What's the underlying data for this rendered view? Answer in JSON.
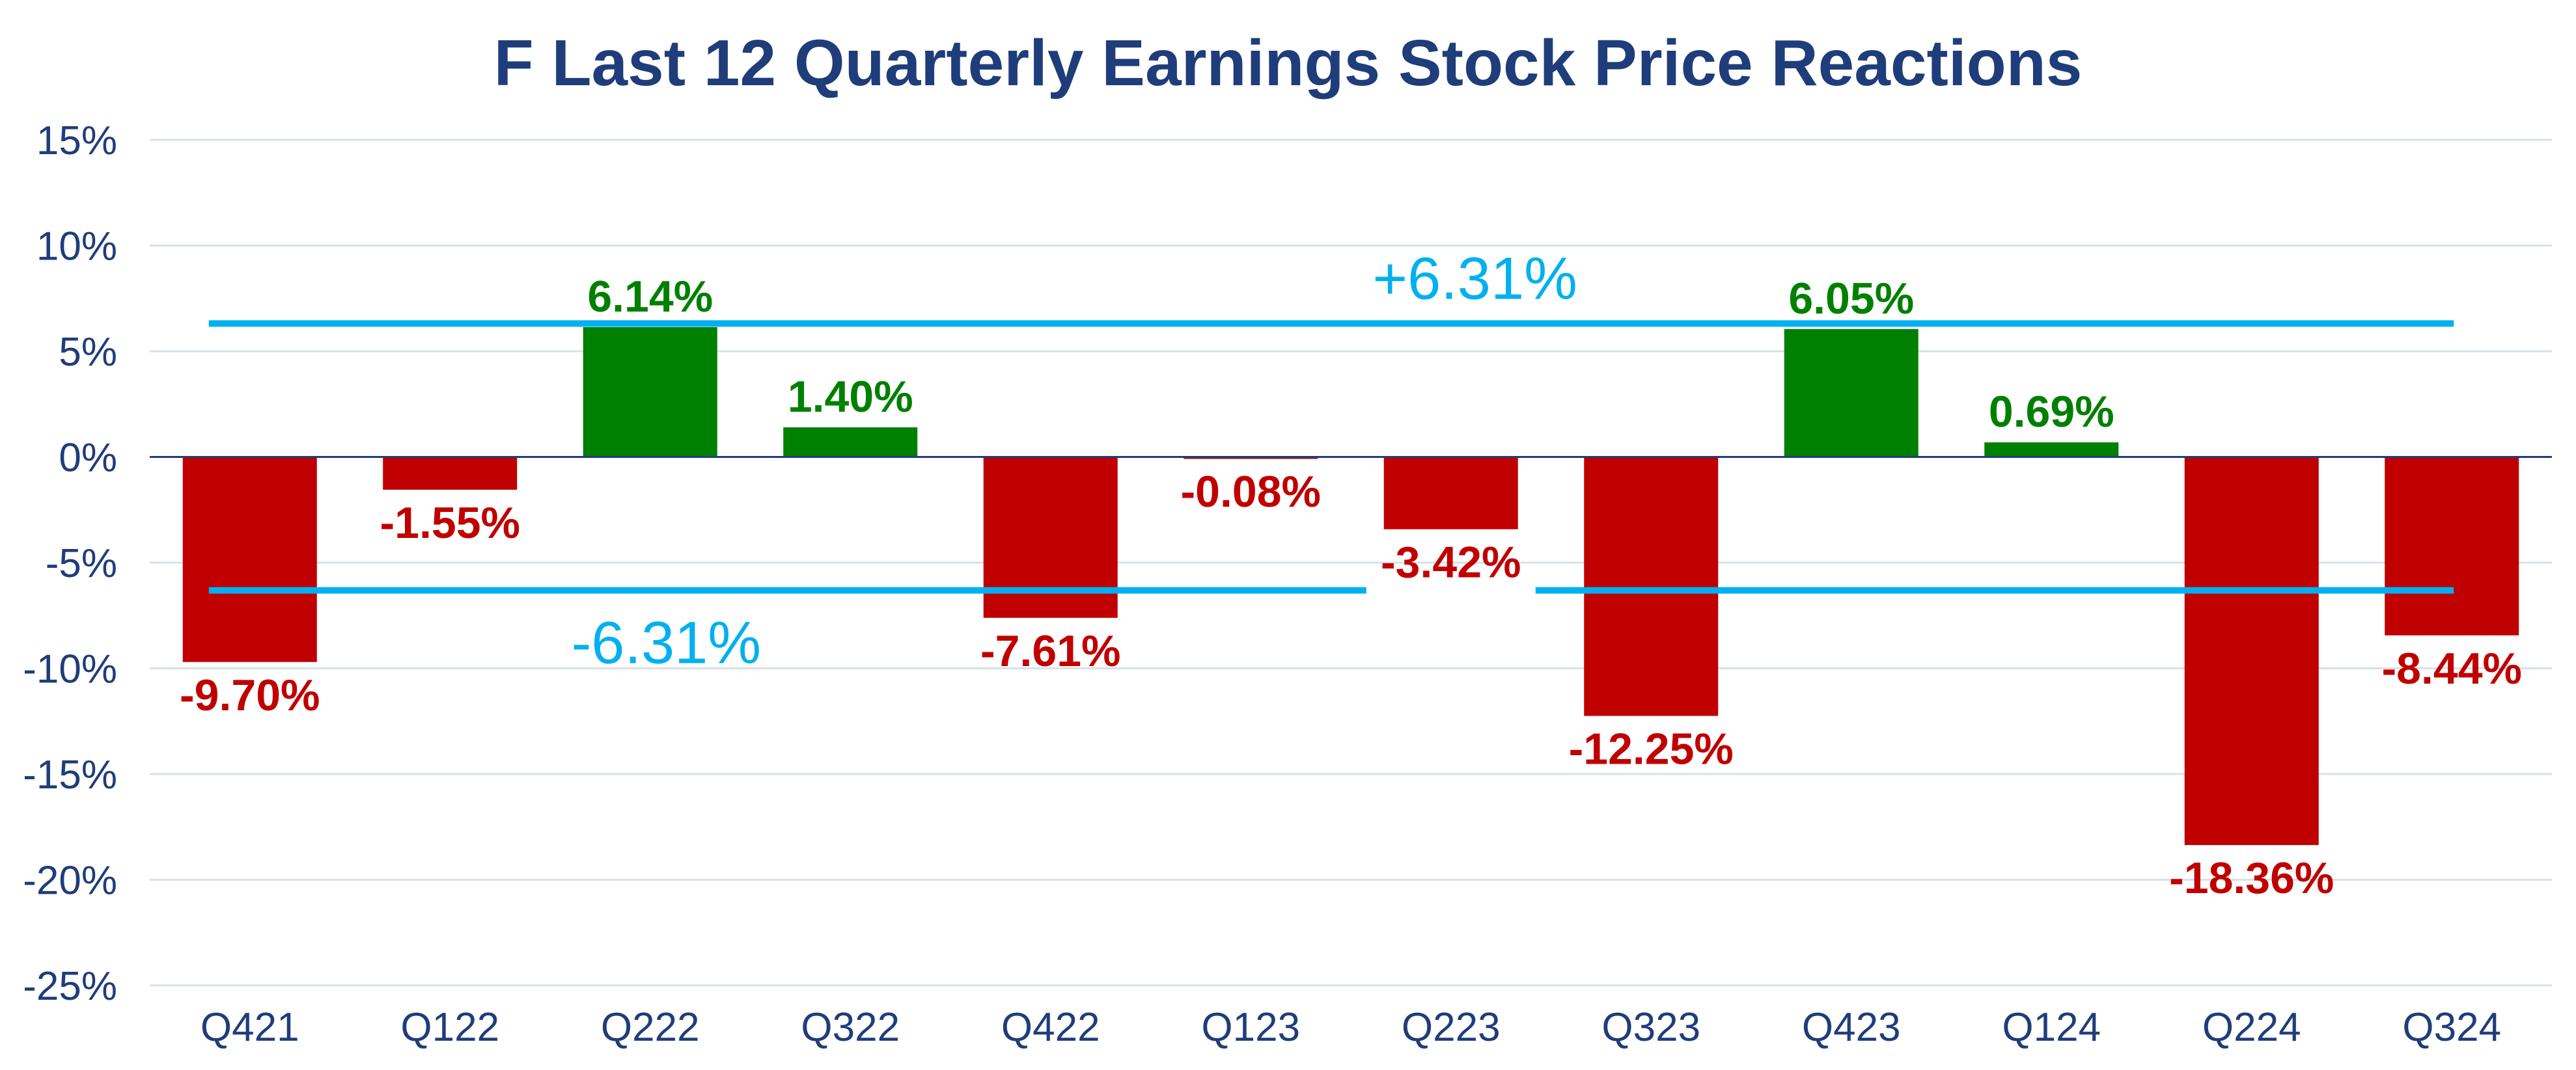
{
  "chart_data": {
    "type": "bar",
    "title": "F Last 12 Quarterly Earnings Stock Price Reactions",
    "xlabel": "",
    "ylabel": "",
    "categories": [
      "Q421",
      "Q122",
      "Q222",
      "Q322",
      "Q422",
      "Q123",
      "Q223",
      "Q323",
      "Q423",
      "Q124",
      "Q224",
      "Q324"
    ],
    "series": [
      {
        "values": [
          -9.7,
          -1.55,
          6.14,
          1.4,
          -7.61,
          -0.08,
          -3.42,
          -12.25,
          6.05,
          0.69,
          -18.36,
          -8.44
        ]
      }
    ],
    "data_labels": [
      "-9.70%",
      "-1.55%",
      "6.14%",
      "1.40%",
      "-7.61%",
      "-0.08%",
      "-3.42%",
      "-12.25%",
      "6.05%",
      "0.69%",
      "-18.36%",
      "-8.44%"
    ],
    "ylim": [
      -25,
      15
    ],
    "yticks": [
      15,
      10,
      5,
      0,
      -5,
      -10,
      -15,
      -20,
      -25
    ],
    "ytick_labels": [
      "15%",
      "10%",
      "5%",
      "0%",
      "-5%",
      "-10%",
      "-15%",
      "-20%",
      "-25%"
    ],
    "grid": true,
    "reference_lines": [
      {
        "value": 6.31,
        "label": "+6.31%"
      },
      {
        "value": -6.31,
        "label": "-6.31%"
      }
    ],
    "colors": {
      "positive": "#008000",
      "negative": "#C00000",
      "reference": "#00B0F0",
      "title": "#1F3D7A",
      "axis_text": "#1F3D7A",
      "grid": "#D9E1E8",
      "zero_line": "#1F3D7A"
    }
  }
}
